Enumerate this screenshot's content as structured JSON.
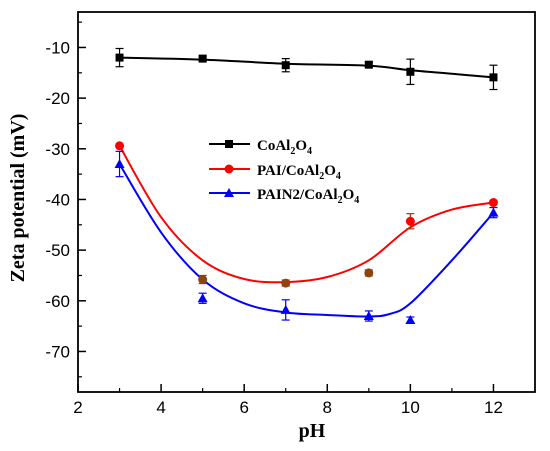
{
  "chart_data": {
    "type": "line",
    "xlabel": "pH",
    "ylabel": "Zeta potential (mV)",
    "xlim": [
      2,
      13
    ],
    "ylim": [
      -78,
      -3
    ],
    "xticks": [
      2,
      4,
      6,
      8,
      10,
      12
    ],
    "yticks": [
      -10,
      -20,
      -30,
      -40,
      -50,
      -60,
      -70
    ],
    "legend_position": "center-left",
    "series": [
      {
        "name": "CoAl2O4",
        "color": "#000000",
        "marker": "square",
        "x": [
          3,
          5,
          7,
          9,
          10,
          12
        ],
        "y": [
          -12.0,
          -12.2,
          -13.5,
          -13.4,
          -14.8,
          -15.9
        ],
        "err": [
          1.8,
          0.5,
          1.3,
          0.5,
          2.5,
          2.4
        ],
        "fit_x": [
          3,
          5,
          7,
          9,
          10,
          11,
          12
        ],
        "fit_y": [
          -12.0,
          -12.4,
          -13.2,
          -13.6,
          -14.5,
          -15.2,
          -15.9
        ]
      },
      {
        "name": "PAI/CoAl2O4",
        "color": "#ff0000",
        "marker": "circle",
        "x": [
          3,
          5,
          7,
          9,
          10,
          12
        ],
        "y": [
          -29.4,
          -55.8,
          -56.5,
          -54.5,
          -44.3,
          -40.6
        ],
        "err": [
          0.3,
          0.8,
          0.6,
          0.6,
          1.5,
          0.4
        ],
        "fit_x": [
          3,
          4,
          5,
          6,
          7,
          8,
          9,
          10,
          11,
          12
        ],
        "fit_y": [
          -29.4,
          -43.5,
          -52.0,
          -55.7,
          -56.3,
          -55.3,
          -52.0,
          -45.5,
          -42.0,
          -40.6
        ]
      },
      {
        "name": "PAIN2/CoAl2O4",
        "color": "#0000ff",
        "marker": "triangle",
        "x": [
          3,
          5,
          7,
          9,
          10,
          12
        ],
        "y": [
          -33.0,
          -59.5,
          -61.8,
          -63.0,
          -63.8,
          -42.6
        ],
        "err": [
          2.5,
          1.0,
          2.0,
          1.0,
          0.6,
          1.0
        ],
        "fit_x": [
          3,
          4,
          5,
          6,
          7,
          8,
          9,
          9.5,
          10,
          11,
          12
        ],
        "fit_y": [
          -33.0,
          -46.5,
          -55.8,
          -60.5,
          -62.3,
          -62.8,
          -63.1,
          -62.6,
          -60.5,
          -52.0,
          -42.6
        ]
      }
    ]
  },
  "legend": [
    {
      "base": "CoAl",
      "sub1": "2",
      "mid": "O",
      "sub2": "4"
    },
    {
      "base": "PAI/CoAl",
      "sub1": "2",
      "mid": "O",
      "sub2": "4"
    },
    {
      "base": "PAIN2/CoAl",
      "sub1": "2",
      "mid": "O",
      "sub2": "4"
    }
  ]
}
